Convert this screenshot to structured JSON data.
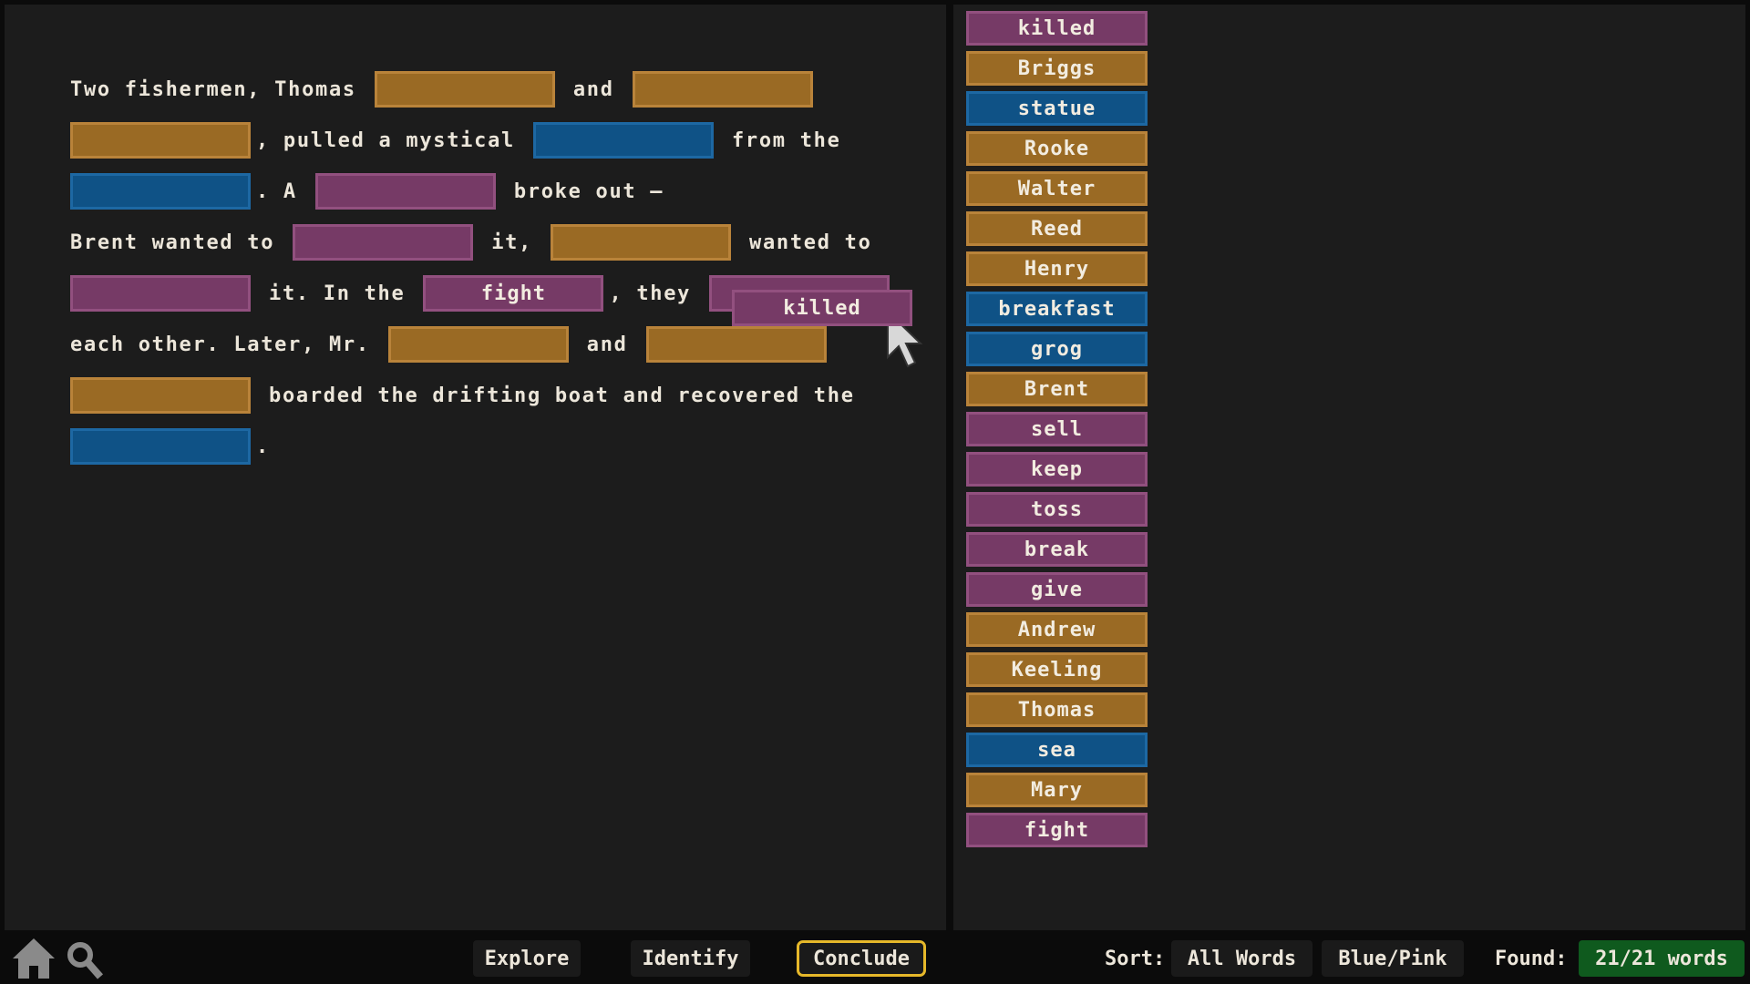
{
  "story": {
    "lines": [
      [
        {
          "text": "Two fishermen, Thomas"
        },
        {
          "blank": "orange"
        },
        {
          "text": "and"
        },
        {
          "blank": "orange"
        }
      ],
      [
        {
          "blank": "orange"
        },
        {
          "text": ", pulled a mystical"
        },
        {
          "blank": "blue"
        },
        {
          "text": "from the"
        }
      ],
      [
        {
          "blank": "blue"
        },
        {
          "text": ". A"
        },
        {
          "blank": "pink"
        },
        {
          "text": "broke out –"
        }
      ],
      [
        {
          "text": "Brent wanted to"
        },
        {
          "blank": "pink"
        },
        {
          "text": "it,"
        },
        {
          "blank": "orange"
        },
        {
          "text": "wanted to"
        }
      ],
      [
        {
          "blank": "pink"
        },
        {
          "text": "it. In the"
        },
        {
          "blank": "pink",
          "word": "fight"
        },
        {
          "text": ", they"
        },
        {
          "blank": "pink"
        }
      ],
      [
        {
          "text": "each other. Later, Mr."
        },
        {
          "blank": "orange"
        },
        {
          "text": "and"
        },
        {
          "blank": "orange"
        }
      ],
      [
        {
          "blank": "orange"
        },
        {
          "text": "boarded the drifting boat and recovered the"
        }
      ],
      [
        {
          "blank": "blue"
        },
        {
          "text": "."
        }
      ]
    ]
  },
  "dragged_word": {
    "text": "killed",
    "color": "pink"
  },
  "word_bank": [
    {
      "text": "killed",
      "color": "pink"
    },
    {
      "text": "Briggs",
      "color": "orange"
    },
    {
      "text": "statue",
      "color": "blue"
    },
    {
      "text": "Rooke",
      "color": "orange"
    },
    {
      "text": "Walter",
      "color": "orange"
    },
    {
      "text": "Reed",
      "color": "orange"
    },
    {
      "text": "Henry",
      "color": "orange"
    },
    {
      "text": "breakfast",
      "color": "blue"
    },
    {
      "text": "grog",
      "color": "blue"
    },
    {
      "text": "Brent",
      "color": "orange"
    },
    {
      "text": "sell",
      "color": "pink"
    },
    {
      "text": "keep",
      "color": "pink"
    },
    {
      "text": "toss",
      "color": "pink"
    },
    {
      "text": "break",
      "color": "pink"
    },
    {
      "text": "give",
      "color": "pink"
    },
    {
      "text": "Andrew",
      "color": "orange"
    },
    {
      "text": "Keeling",
      "color": "orange"
    },
    {
      "text": "Thomas",
      "color": "orange"
    },
    {
      "text": "sea",
      "color": "blue"
    },
    {
      "text": "Mary",
      "color": "orange"
    },
    {
      "text": "fight",
      "color": "pink"
    }
  ],
  "toolbar": {
    "tabs": [
      {
        "text": "Explore",
        "active": false
      },
      {
        "text": "Identify",
        "active": false
      },
      {
        "text": "Conclude",
        "active": true
      }
    ],
    "sort_label": "Sort:",
    "sort_options": [
      "All Words",
      "Blue/Pink"
    ],
    "found_label": "Found:",
    "found_count": "21/21 words"
  }
}
